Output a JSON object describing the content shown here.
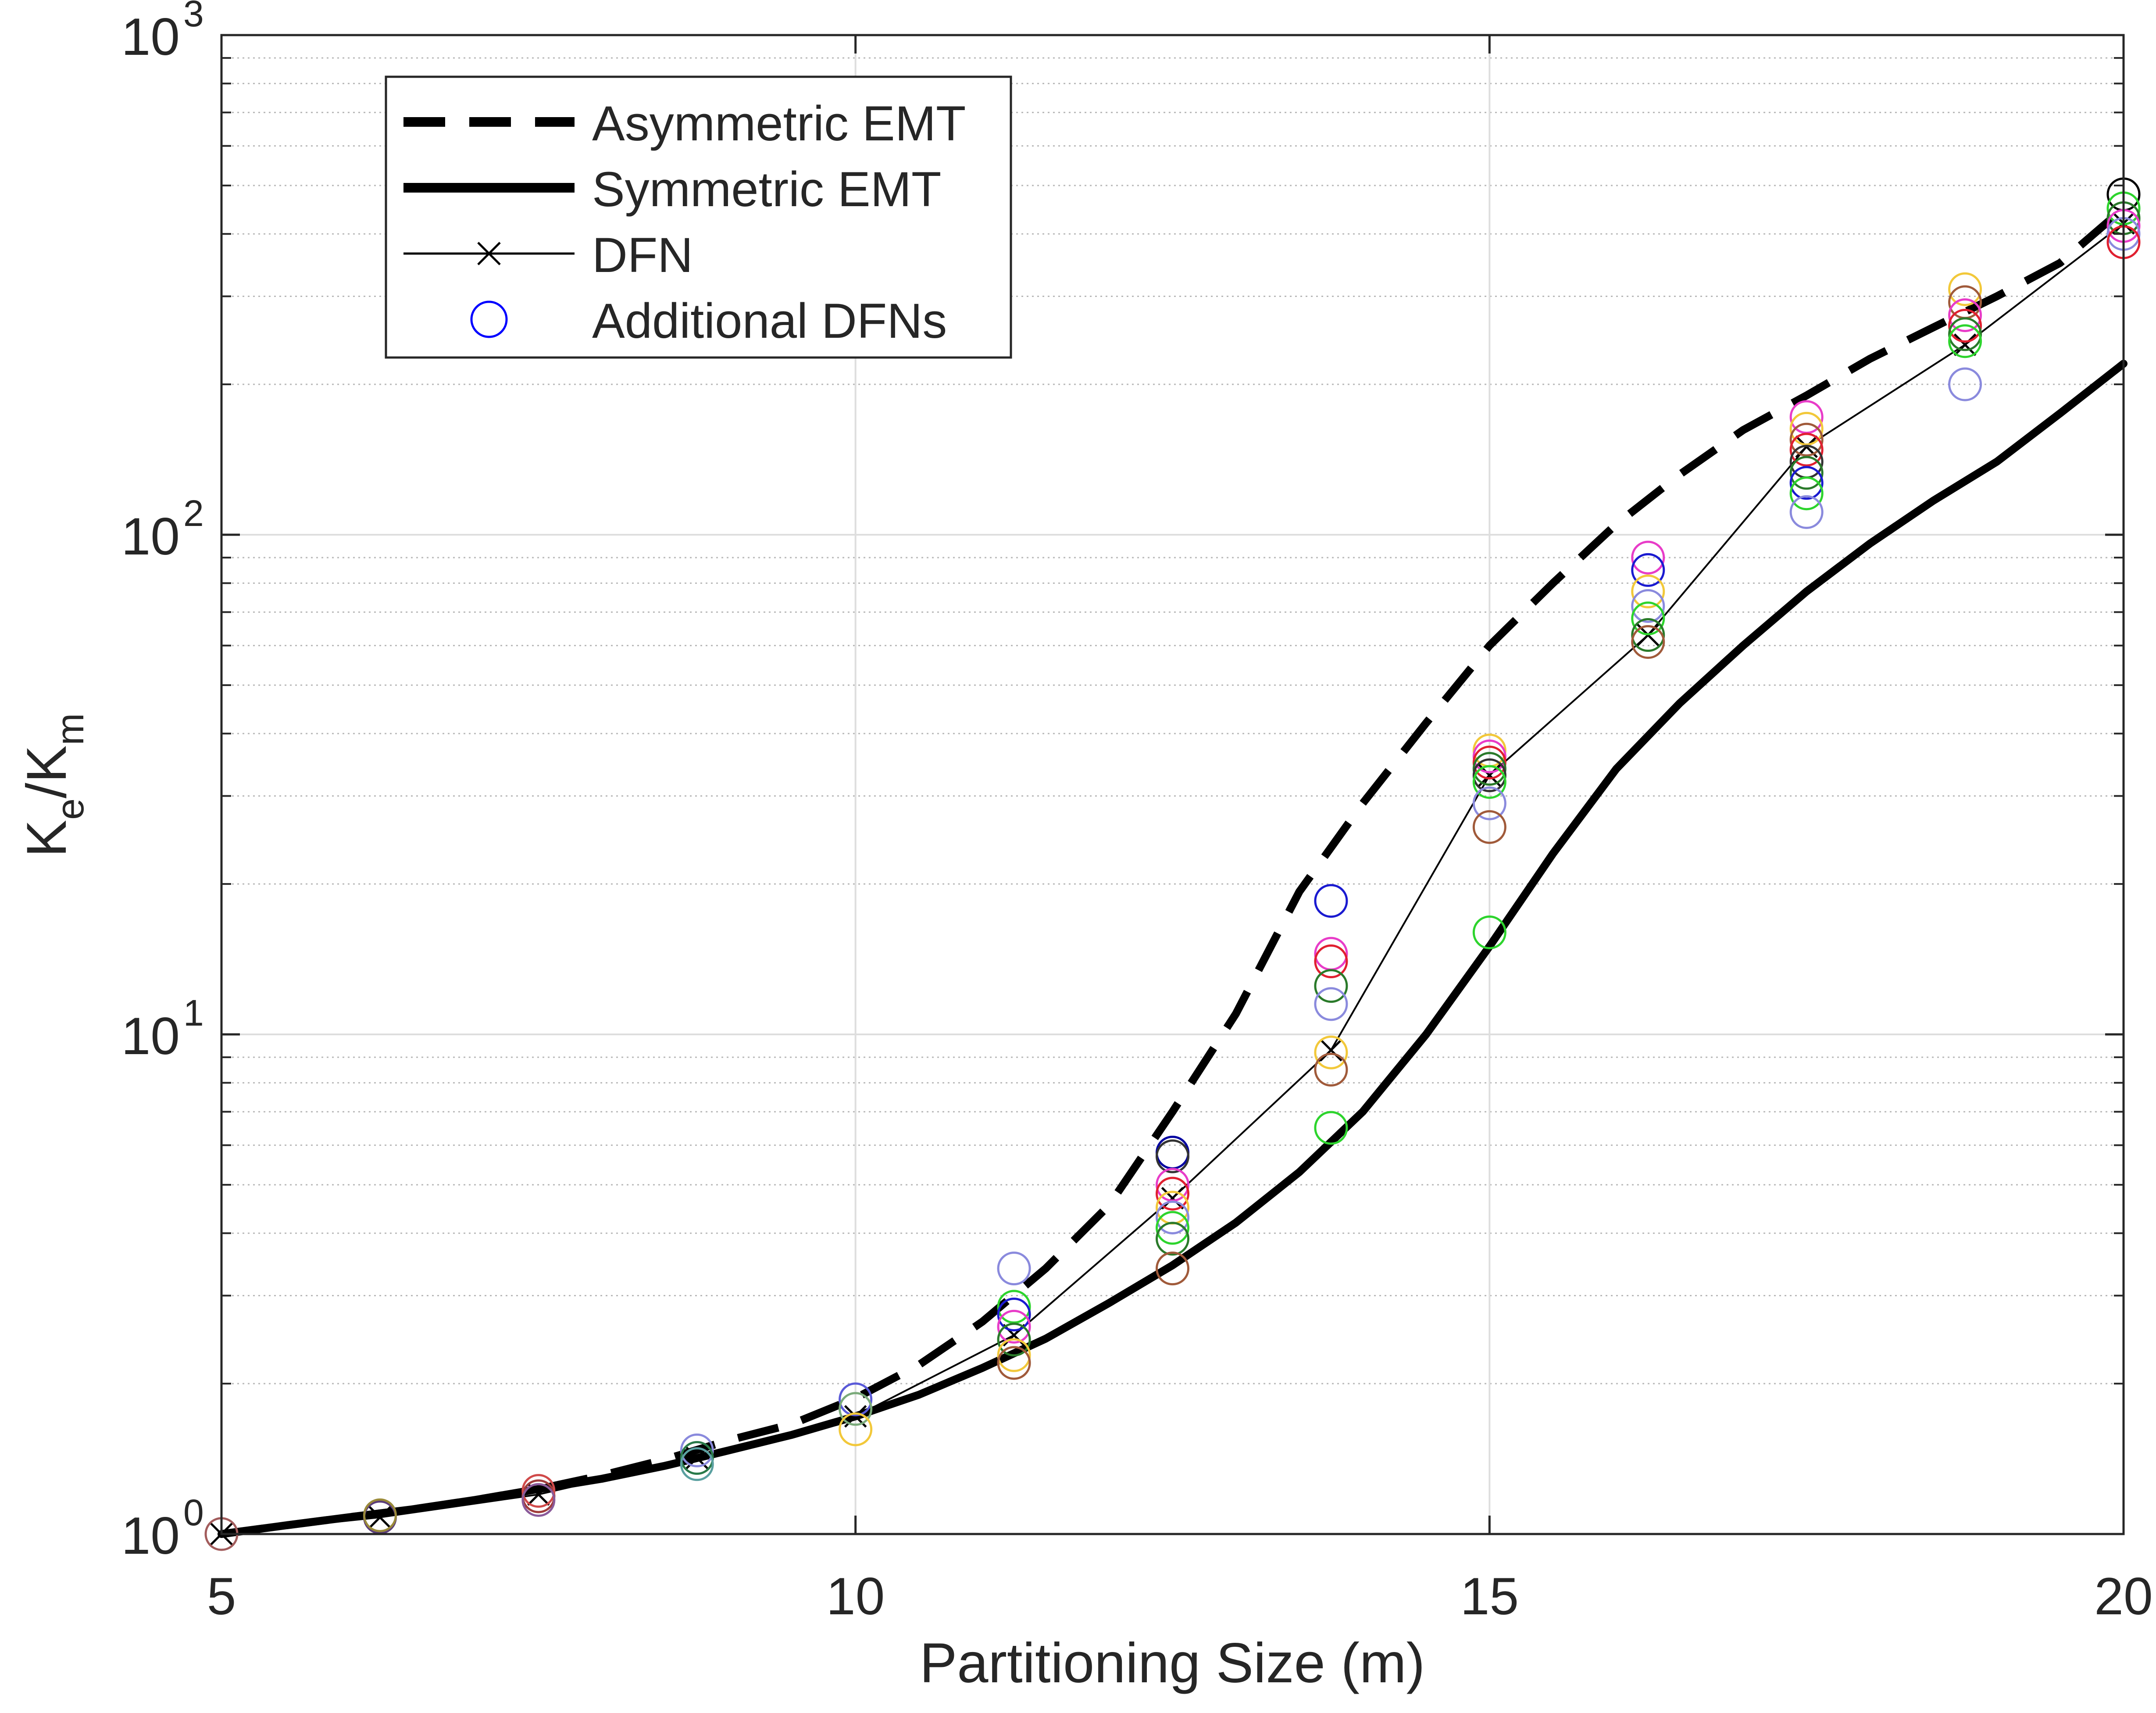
{
  "chart_data": {
    "type": "scatter",
    "title": "",
    "xlabel": "Partitioning Size (m)",
    "ylabel_main": "K",
    "ylabel_sub1": "e",
    "ylabel_mid": "/K",
    "ylabel_sub2": "m",
    "xlim": [
      5,
      20
    ],
    "ylim": [
      1,
      1000
    ],
    "yscale": "log",
    "grid": true,
    "legend_position": "top-left",
    "x_ticks": [
      {
        "value": 5,
        "label": "5"
      },
      {
        "value": 10,
        "label": "10"
      },
      {
        "value": 15,
        "label": "15"
      },
      {
        "value": 20,
        "label": "20"
      }
    ],
    "y_ticks": [
      {
        "value": 1,
        "base": "10",
        "exp": "0"
      },
      {
        "value": 10,
        "base": "10",
        "exp": "1"
      },
      {
        "value": 100,
        "base": "10",
        "exp": "2"
      },
      {
        "value": 1000,
        "base": "10",
        "exp": "3"
      }
    ],
    "series": [
      {
        "name": "Asymmetric EMT",
        "style": "dashed",
        "color": "#000000",
        "x": [
          5,
          5.5,
          6,
          6.5,
          7,
          7.5,
          8,
          8.5,
          9,
          9.5,
          10,
          10.5,
          11,
          11.5,
          12,
          12.5,
          13,
          13.5,
          14,
          14.5,
          15,
          15.5,
          16,
          16.5,
          17,
          17.5,
          18,
          18.5,
          19,
          19.5,
          20
        ],
        "y": [
          1.0,
          1.04,
          1.08,
          1.12,
          1.17,
          1.23,
          1.31,
          1.41,
          1.54,
          1.66,
          1.87,
          2.18,
          2.66,
          3.4,
          4.55,
          7.0,
          11.0,
          19.3,
          29.0,
          42.0,
          60.0,
          80.0,
          105.0,
          132.0,
          162.0,
          190.0,
          225.0,
          260.0,
          300.0,
          350.0,
          450.0
        ]
      },
      {
        "name": "Symmetric EMT",
        "style": "solid-thick",
        "color": "#000000",
        "x": [
          5,
          5.5,
          6,
          6.5,
          7,
          7.5,
          8,
          8.5,
          9,
          9.5,
          10,
          10.5,
          11,
          11.5,
          12,
          12.5,
          13,
          13.5,
          14,
          14.5,
          15,
          15.5,
          16,
          16.5,
          17,
          17.5,
          18,
          18.5,
          19,
          19.5,
          20
        ],
        "y": [
          1.0,
          1.04,
          1.08,
          1.12,
          1.17,
          1.23,
          1.29,
          1.37,
          1.47,
          1.58,
          1.72,
          1.9,
          2.15,
          2.46,
          2.9,
          3.45,
          4.2,
          5.3,
          7.0,
          10.0,
          15.0,
          23.0,
          34.0,
          46.0,
          60.0,
          77.0,
          96.0,
          117.0,
          140.0,
          175.0,
          220.0
        ]
      },
      {
        "name": "DFN",
        "style": "thin-x",
        "color": "#000000",
        "x": [
          5,
          6.25,
          7.5,
          8.75,
          10,
          11.25,
          12.5,
          13.75,
          15,
          16.25,
          17.5,
          18.75,
          20
        ],
        "y": [
          1.0,
          1.08,
          1.2,
          1.42,
          1.72,
          2.5,
          4.7,
          9.3,
          33.0,
          63.0,
          150.0,
          240.0,
          420.0
        ]
      },
      {
        "name": "Additional DFNs",
        "style": "circles",
        "color": "#0000ff",
        "points": [
          {
            "x": 5,
            "y": 1.0,
            "color": "#a25c5c"
          },
          {
            "x": 6.25,
            "y": 1.08,
            "color": "#5a3c7a"
          },
          {
            "x": 6.25,
            "y": 1.09,
            "color": "#9a8a3a"
          },
          {
            "x": 7.5,
            "y": 1.19,
            "color": "#a03c3c"
          },
          {
            "x": 7.5,
            "y": 1.22,
            "color": "#d04a4a"
          },
          {
            "x": 7.5,
            "y": 1.17,
            "color": "#8a5a9a"
          },
          {
            "x": 8.75,
            "y": 1.47,
            "color": "#8a8add"
          },
          {
            "x": 8.75,
            "y": 1.42,
            "color": "#2a7a4a"
          },
          {
            "x": 8.75,
            "y": 1.38,
            "color": "#5aa0a0"
          },
          {
            "x": 10,
            "y": 1.86,
            "color": "#5a5ad8"
          },
          {
            "x": 10,
            "y": 1.78,
            "color": "#7aaa7a"
          },
          {
            "x": 10,
            "y": 1.62,
            "color": "#f2c83a"
          },
          {
            "x": 11.25,
            "y": 3.4,
            "color": "#8a8add"
          },
          {
            "x": 11.25,
            "y": 2.85,
            "color": "#2dd42d"
          },
          {
            "x": 11.25,
            "y": 2.75,
            "color": "#1a1ad0"
          },
          {
            "x": 11.25,
            "y": 2.6,
            "color": "#e83cc8"
          },
          {
            "x": 11.25,
            "y": 2.45,
            "color": "#2a7a2a"
          },
          {
            "x": 11.25,
            "y": 2.28,
            "color": "#f2c83a"
          },
          {
            "x": 11.25,
            "y": 2.2,
            "color": "#a05a3a"
          },
          {
            "x": 12.5,
            "y": 5.8,
            "color": "#0000a0"
          },
          {
            "x": 12.5,
            "y": 5.7,
            "color": "#333333"
          },
          {
            "x": 12.5,
            "y": 5.0,
            "color": "#e83cc8"
          },
          {
            "x": 12.5,
            "y": 4.8,
            "color": "#e02030"
          },
          {
            "x": 12.5,
            "y": 4.5,
            "color": "#f2c83a"
          },
          {
            "x": 12.5,
            "y": 4.3,
            "color": "#8a8add"
          },
          {
            "x": 12.5,
            "y": 4.1,
            "color": "#2dd42d"
          },
          {
            "x": 12.5,
            "y": 3.9,
            "color": "#2a7a2a"
          },
          {
            "x": 12.5,
            "y": 3.4,
            "color": "#a05a3a"
          },
          {
            "x": 13.75,
            "y": 18.5,
            "color": "#1a1ad0"
          },
          {
            "x": 13.75,
            "y": 14.5,
            "color": "#e83cc8"
          },
          {
            "x": 13.75,
            "y": 14.0,
            "color": "#e02030"
          },
          {
            "x": 13.75,
            "y": 12.5,
            "color": "#2a7a2a"
          },
          {
            "x": 13.75,
            "y": 11.5,
            "color": "#8a8add"
          },
          {
            "x": 13.75,
            "y": 9.2,
            "color": "#f2c83a"
          },
          {
            "x": 13.75,
            "y": 8.5,
            "color": "#a05a3a"
          },
          {
            "x": 13.75,
            "y": 6.5,
            "color": "#2dd42d"
          },
          {
            "x": 15,
            "y": 37.0,
            "color": "#f2c83a"
          },
          {
            "x": 15,
            "y": 36.0,
            "color": "#e83cc8"
          },
          {
            "x": 15,
            "y": 35.0,
            "color": "#e02030"
          },
          {
            "x": 15,
            "y": 34.0,
            "color": "#2a7a2a"
          },
          {
            "x": 15,
            "y": 33.0,
            "color": "#333333"
          },
          {
            "x": 15,
            "y": 32.0,
            "color": "#2dd42d"
          },
          {
            "x": 15,
            "y": 29.0,
            "color": "#8a8add"
          },
          {
            "x": 15,
            "y": 26.0,
            "color": "#a05a3a"
          },
          {
            "x": 15,
            "y": 16.0,
            "color": "#2dd42d"
          },
          {
            "x": 16.25,
            "y": 90.0,
            "color": "#e83cc8"
          },
          {
            "x": 16.25,
            "y": 85.0,
            "color": "#1a1ad0"
          },
          {
            "x": 16.25,
            "y": 77.0,
            "color": "#f2c83a"
          },
          {
            "x": 16.25,
            "y": 72.0,
            "color": "#8a8add"
          },
          {
            "x": 16.25,
            "y": 68.0,
            "color": "#2dd42d"
          },
          {
            "x": 16.25,
            "y": 63.0,
            "color": "#2a7a2a"
          },
          {
            "x": 16.25,
            "y": 61.0,
            "color": "#a05a3a"
          },
          {
            "x": 17.5,
            "y": 172.0,
            "color": "#e83cc8"
          },
          {
            "x": 17.5,
            "y": 163.0,
            "color": "#f2c83a"
          },
          {
            "x": 17.5,
            "y": 155.0,
            "color": "#a05a3a"
          },
          {
            "x": 17.5,
            "y": 148.0,
            "color": "#e02030"
          },
          {
            "x": 17.5,
            "y": 140.0,
            "color": "#333333"
          },
          {
            "x": 17.5,
            "y": 133.0,
            "color": "#2a7a2a"
          },
          {
            "x": 17.5,
            "y": 127.0,
            "color": "#1a1ad0"
          },
          {
            "x": 17.5,
            "y": 121.0,
            "color": "#2dd42d"
          },
          {
            "x": 17.5,
            "y": 111.0,
            "color": "#8a8add"
          },
          {
            "x": 18.75,
            "y": 310.0,
            "color": "#f2c83a"
          },
          {
            "x": 18.75,
            "y": 292.0,
            "color": "#a05a3a"
          },
          {
            "x": 18.75,
            "y": 275.0,
            "color": "#e83cc8"
          },
          {
            "x": 18.75,
            "y": 262.0,
            "color": "#e02030"
          },
          {
            "x": 18.75,
            "y": 252.0,
            "color": "#2a7a2a"
          },
          {
            "x": 18.75,
            "y": 244.0,
            "color": "#2dd42d"
          },
          {
            "x": 18.75,
            "y": 200.0,
            "color": "#8a8add"
          },
          {
            "x": 20,
            "y": 480.0,
            "color": "#000000"
          },
          {
            "x": 20,
            "y": 450.0,
            "color": "#2dd42d"
          },
          {
            "x": 20,
            "y": 430.0,
            "color": "#2a7a2a"
          },
          {
            "x": 20,
            "y": 415.0,
            "color": "#e83cc8"
          },
          {
            "x": 20,
            "y": 400.0,
            "color": "#8a8add"
          },
          {
            "x": 20,
            "y": 385.0,
            "color": "#e02030"
          }
        ]
      }
    ]
  }
}
